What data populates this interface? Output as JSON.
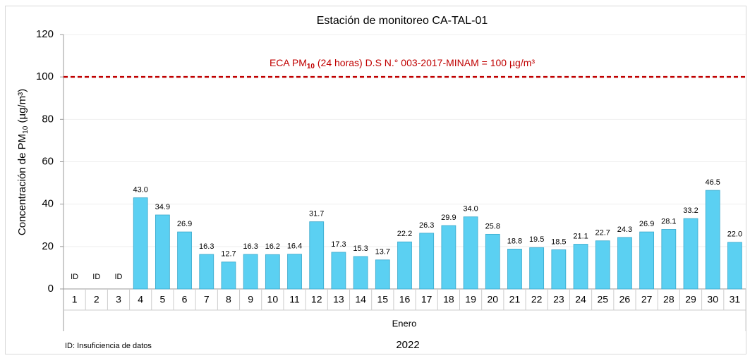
{
  "chart_data": {
    "type": "bar",
    "title": "Estación de monitoreo CA-TAL-01",
    "y_label": {
      "text": "Concentración de PM",
      "sub": "10",
      "rest": " (µg/m³)"
    },
    "x_label": "Enero",
    "x_group_label": "2022",
    "footnote": "ID: Insuficiencia de datos",
    "categories": [
      "1",
      "2",
      "3",
      "4",
      "5",
      "6",
      "7",
      "8",
      "9",
      "10",
      "11",
      "12",
      "13",
      "14",
      "15",
      "16",
      "17",
      "18",
      "19",
      "20",
      "21",
      "22",
      "23",
      "24",
      "25",
      "26",
      "27",
      "28",
      "29",
      "30",
      "31"
    ],
    "values": [
      null,
      null,
      null,
      43.0,
      34.9,
      26.9,
      16.3,
      12.7,
      16.3,
      16.2,
      16.4,
      31.7,
      17.3,
      15.3,
      13.7,
      22.2,
      26.3,
      29.9,
      34.0,
      25.8,
      18.8,
      19.5,
      18.5,
      21.1,
      22.7,
      24.3,
      26.9,
      28.1,
      33.2,
      46.5,
      22.0
    ],
    "value_labels": [
      "ID",
      "ID",
      "ID",
      "43.0",
      "34.9",
      "26.9",
      "16.3",
      "12.7",
      "16.3",
      "16.2",
      "16.4",
      "31.7",
      "17.3",
      "15.3",
      "13.7",
      "22.2",
      "26.3",
      "29.9",
      "34.0",
      "25.8",
      "18.8",
      "19.5",
      "18.5",
      "21.1",
      "22.7",
      "24.3",
      "26.9",
      "28.1",
      "33.2",
      "46.5",
      "22.0"
    ],
    "color": "#5bd0f2",
    "ylim": [
      0,
      120
    ],
    "yticks": [
      0,
      20,
      40,
      60,
      80,
      100,
      120
    ],
    "grid": true,
    "threshold": {
      "value": 100,
      "color": "#c00000",
      "label": {
        "text": "ECA PM",
        "sub": "10",
        "rest": " (24 horas) D.S N.° 003-2017-MINAM = 100 µg/m³"
      }
    }
  }
}
